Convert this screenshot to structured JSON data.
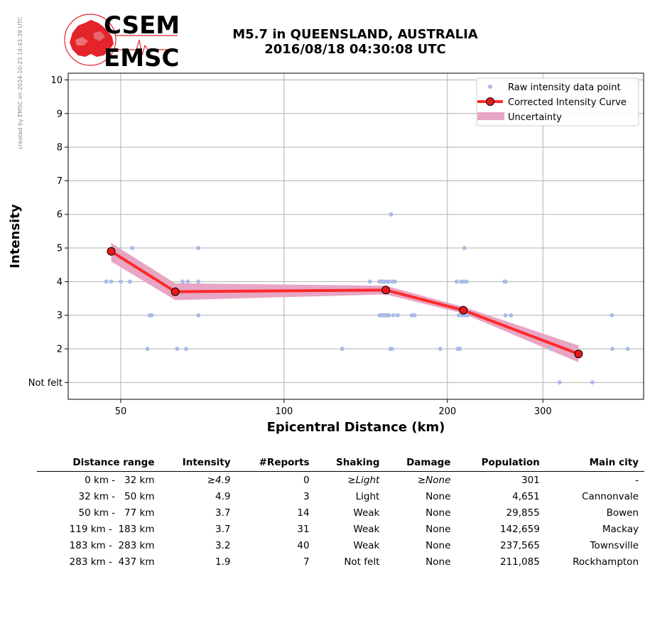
{
  "credit": "created by EMSC on 2024-10-23 14:43:39 UTC",
  "logo": {
    "top": "CSEM",
    "bottom": "EMSC"
  },
  "title": {
    "line1": "M5.7 in QUEENSLAND, AUSTRALIA",
    "line2": "2016/08/18 04:30:08 UTC"
  },
  "colors": {
    "raw": "#aabbe8",
    "curve": "#ff2a2a",
    "marker": "#e8191e",
    "band": "#e7a6c3",
    "grid": "#b0b0b0",
    "logo_red": "#e3242b"
  },
  "chart_data": {
    "type": "scatter",
    "xlabel": "Epicentral Distance (km)",
    "ylabel": "Intensity",
    "xscale": "log",
    "xlim": [
      40,
      460
    ],
    "ylim": [
      0.5,
      10.2
    ],
    "xticks": [
      {
        "value": 50,
        "label": "50"
      },
      {
        "value": 100,
        "label": "100"
      },
      {
        "value": 200,
        "label": "200"
      },
      {
        "value": 300,
        "label": "300"
      }
    ],
    "yticks": [
      {
        "value": 1,
        "label": "Not felt"
      },
      {
        "value": 2,
        "label": "2"
      },
      {
        "value": 3,
        "label": "3"
      },
      {
        "value": 4,
        "label": "4"
      },
      {
        "value": 5,
        "label": "5"
      },
      {
        "value": 6,
        "label": "6"
      },
      {
        "value": 7,
        "label": "7"
      },
      {
        "value": 8,
        "label": "8"
      },
      {
        "value": 9,
        "label": "9"
      },
      {
        "value": 10,
        "label": "10"
      }
    ],
    "grid": true,
    "legend_position": "top-right",
    "legend": [
      "Raw intensity data point",
      "Corrected Intensity Curve",
      "Uncertainty"
    ],
    "raw_points": [
      [
        47,
        4
      ],
      [
        48,
        4
      ],
      [
        50,
        4
      ],
      [
        52,
        4
      ],
      [
        52.5,
        5
      ],
      [
        56,
        2
      ],
      [
        56.5,
        3
      ],
      [
        57,
        3
      ],
      [
        63.5,
        2
      ],
      [
        65,
        4
      ],
      [
        66,
        2
      ],
      [
        66.5,
        4
      ],
      [
        69.5,
        5
      ],
      [
        69.5,
        4
      ],
      [
        69.5,
        3
      ],
      [
        128,
        2
      ],
      [
        144,
        4
      ],
      [
        150,
        4
      ],
      [
        150,
        3
      ],
      [
        151,
        4
      ],
      [
        151.5,
        3
      ],
      [
        152,
        4
      ],
      [
        152.5,
        3
      ],
      [
        153,
        4
      ],
      [
        153,
        3
      ],
      [
        154,
        3
      ],
      [
        155,
        4
      ],
      [
        155,
        3
      ],
      [
        156,
        4
      ],
      [
        156,
        3
      ],
      [
        157,
        2
      ],
      [
        157.5,
        6
      ],
      [
        158,
        2
      ],
      [
        158.5,
        4
      ],
      [
        159,
        3
      ],
      [
        160,
        4
      ],
      [
        162,
        3
      ],
      [
        172,
        3
      ],
      [
        174,
        3
      ],
      [
        194,
        2
      ],
      [
        208,
        4
      ],
      [
        209,
        2
      ],
      [
        210,
        2
      ],
      [
        210,
        3
      ],
      [
        211,
        2
      ],
      [
        212,
        4
      ],
      [
        213,
        3
      ],
      [
        214,
        4
      ],
      [
        215,
        5
      ],
      [
        216,
        3
      ],
      [
        217,
        4
      ],
      [
        218,
        3
      ],
      [
        255,
        4
      ],
      [
        256,
        4
      ],
      [
        256,
        3
      ],
      [
        262,
        3
      ],
      [
        310,
        2
      ],
      [
        322,
        1
      ],
      [
        370,
        1
      ],
      [
        402,
        3
      ],
      [
        403,
        2
      ],
      [
        430,
        2
      ]
    ],
    "corrected_curve": [
      {
        "x": 48,
        "y": 4.9
      },
      {
        "x": 63,
        "y": 3.7
      },
      {
        "x": 154,
        "y": 3.75
      },
      {
        "x": 214,
        "y": 3.15
      },
      {
        "x": 349,
        "y": 1.85
      }
    ],
    "uncertainty": [
      {
        "x": 48,
        "low": 4.6,
        "high": 5.15
      },
      {
        "x": 63,
        "low": 3.45,
        "high": 3.95
      },
      {
        "x": 154,
        "low": 3.62,
        "high": 3.88
      },
      {
        "x": 214,
        "low": 3.05,
        "high": 3.25
      },
      {
        "x": 349,
        "low": 1.6,
        "high": 2.1
      }
    ]
  },
  "table": {
    "headers": [
      "Distance range",
      "Intensity",
      "#Reports",
      "Shaking",
      "Damage",
      "Population",
      "Main city"
    ],
    "rows": [
      [
        "  0 km -   32 km",
        "≥4.9",
        "0",
        "≥Light",
        "≥None",
        "301",
        "-"
      ],
      [
        " 32 km -   50 km",
        "4.9",
        "3",
        "Light",
        "None",
        "4,651",
        "Cannonvale"
      ],
      [
        " 50 km -   77 km",
        "3.7",
        "14",
        "Weak",
        "None",
        "29,855",
        "Bowen"
      ],
      [
        "119 km -  183 km",
        "3.7",
        "31",
        "Weak",
        "None",
        "142,659",
        "Mackay"
      ],
      [
        "183 km -  283 km",
        "3.2",
        "40",
        "Weak",
        "None",
        "237,565",
        "Townsville"
      ],
      [
        "283 km -  437 km",
        "1.9",
        "7",
        "Not felt",
        "None",
        "211,085",
        "Rockhampton"
      ]
    ],
    "italic_row": 0
  }
}
